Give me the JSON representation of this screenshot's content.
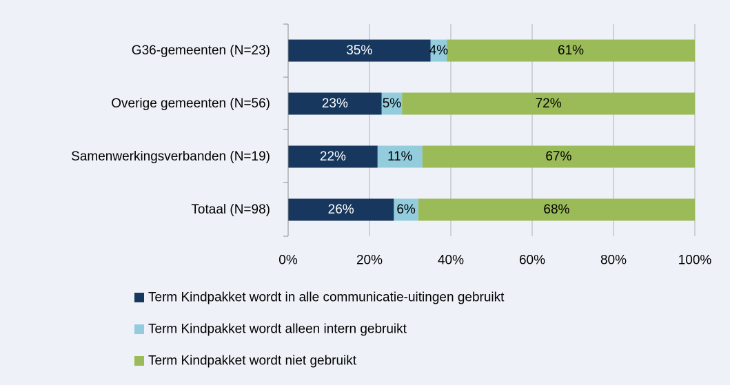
{
  "chart_data": {
    "type": "stacked-bar-horizontal",
    "categories": [
      "G36-gemeenten (N=23)",
      "Overige gemeenten (N=56)",
      "Samenwerkingsverbanden (N=19)",
      "Totaal (N=98)"
    ],
    "series": [
      {
        "name": "Term Kindpakket wordt in alle communicatie-uitingen gebruikt",
        "color": "#17375e",
        "values": [
          35,
          23,
          22,
          26
        ],
        "value_labels": [
          "35%",
          "23%",
          "22%",
          "26%"
        ]
      },
      {
        "name": "Term Kindpakket wordt alleen intern gebruikt",
        "color": "#93cddd",
        "values": [
          4,
          5,
          11,
          6
        ],
        "value_labels": [
          "4%",
          "5%",
          "11%",
          "6%"
        ]
      },
      {
        "name": "Term Kindpakket wordt niet gebruikt",
        "color": "#9bbb59",
        "values": [
          61,
          72,
          67,
          68
        ],
        "value_labels": [
          "61%",
          "72%",
          "67%",
          "68%"
        ]
      }
    ],
    "xlim": [
      0,
      100
    ],
    "xticks": [
      {
        "value": 0,
        "label": "0%"
      },
      {
        "value": 20,
        "label": "20%"
      },
      {
        "value": 40,
        "label": "40%"
      },
      {
        "value": 60,
        "label": "60%"
      },
      {
        "value": 80,
        "label": "80%"
      },
      {
        "value": 100,
        "label": "100%"
      }
    ],
    "grid": true,
    "legend": "bottom"
  }
}
